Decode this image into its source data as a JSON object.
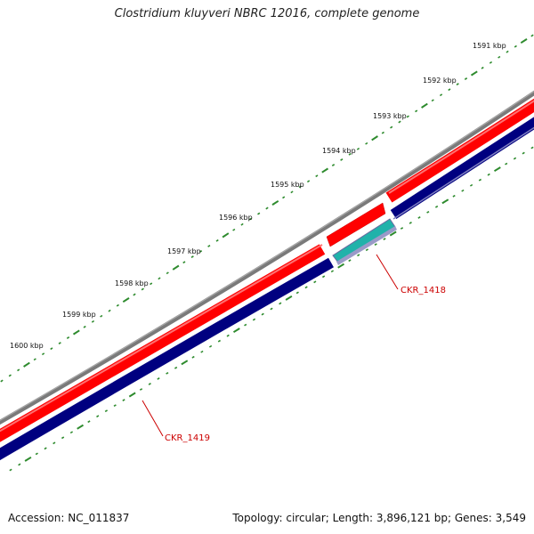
{
  "title": "Clostridium kluyveri NBRC 12016, complete genome",
  "footer": {
    "accession": "Accession: NC_011837",
    "summary": "Topology: circular; Length: 3,896,121 bp; Genes: 3,549"
  },
  "ruler": {
    "labels": [
      "1591 kbp",
      "1592 kbp",
      "1593 kbp",
      "1594 kbp",
      "1595 kbp",
      "1596 kbp",
      "1597 kbp",
      "1598 kbp",
      "1599 kbp",
      "1600 kbp"
    ]
  },
  "genes": [
    {
      "label": "CKR_1418"
    },
    {
      "label": "CKR_1419"
    }
  ],
  "colors": {
    "backbone": "#808080",
    "forward_cds": "#ff0000",
    "reverse_cds": "#000080",
    "highlight_cds": "#20b2aa",
    "ruler_ticks": "#2e8b2e",
    "gene_label": "#cc0000"
  }
}
